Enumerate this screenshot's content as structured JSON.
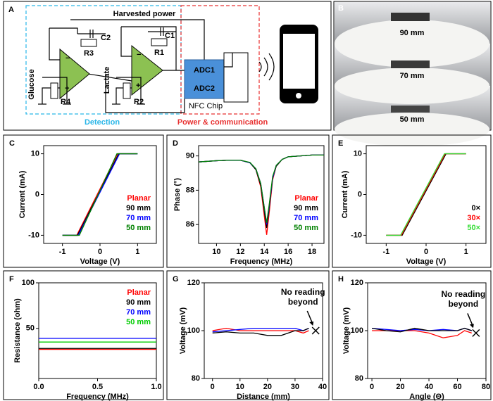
{
  "diagram": {
    "label": "A",
    "supply": "Harvested power",
    "components": [
      "C2",
      "R3",
      "C1",
      "R1",
      "R4",
      "R2"
    ],
    "opamp_signs": [
      "−",
      "+"
    ],
    "sensors": [
      "Glucose",
      "Lactate"
    ],
    "adc": [
      "ADC1",
      "ADC2"
    ],
    "chip": "NFC Chip",
    "sections": [
      "Detection",
      "Power & communication"
    ]
  },
  "photos": {
    "label": "B",
    "captions": [
      "90 mm",
      "70 mm",
      "50 mm"
    ]
  },
  "chart_data": [
    {
      "label": "C",
      "type": "line",
      "xlabel": "Voltage (V)",
      "ylabel": "Current (mA)",
      "xlim": [
        -1.5,
        1.5
      ],
      "xticks": [
        -1,
        0,
        1
      ],
      "ylim": [
        -12,
        12
      ],
      "yticks": [
        -10,
        0,
        10
      ],
      "legend": "right",
      "series": [
        {
          "name": "Planar",
          "color": "#ff0000",
          "x": [
            -1,
            -0.62,
            0.47,
            0.97
          ],
          "values": [
            -10,
            -10,
            10,
            10
          ]
        },
        {
          "name": "90 mm",
          "color": "#000000",
          "x": [
            -1,
            -0.6,
            0.5,
            1
          ],
          "values": [
            -10,
            -10,
            10,
            10
          ]
        },
        {
          "name": "70 mm",
          "color": "#0000ff",
          "x": [
            -1,
            -0.58,
            0.52,
            1
          ],
          "values": [
            -10,
            -10,
            10,
            10
          ]
        },
        {
          "name": "50 mm",
          "color": "#008000",
          "x": [
            -1,
            -0.55,
            0.45,
            1
          ],
          "values": [
            -10,
            -10,
            10,
            10
          ]
        }
      ]
    },
    {
      "label": "D",
      "type": "line",
      "xlabel": "Frequency (MHz)",
      "ylabel": "Phase (°)",
      "xlim": [
        8.5,
        19
      ],
      "xticks": [
        10,
        12,
        14,
        16,
        18
      ],
      "ylim": [
        84.9,
        90.6
      ],
      "yticks": [
        86,
        88,
        90
      ],
      "legend": "right",
      "x": [
        8.5,
        10,
        11,
        12,
        12.8,
        13.3,
        13.7,
        14,
        14.2,
        14.4,
        14.7,
        15,
        15.5,
        16,
        17,
        18,
        19
      ],
      "series": [
        {
          "name": "Planar",
          "color": "#ff0000",
          "values": [
            89.65,
            89.72,
            89.75,
            89.75,
            89.6,
            89.2,
            88.2,
            86.5,
            85.4,
            86.6,
            88.6,
            89.4,
            89.8,
            89.95,
            90,
            90.05,
            90.05
          ]
        },
        {
          "name": "90 mm",
          "color": "#000000",
          "values": [
            89.65,
            89.72,
            89.75,
            89.75,
            89.6,
            89.2,
            88.3,
            86.8,
            85.8,
            86.9,
            88.7,
            89.4,
            89.8,
            89.95,
            90,
            90.05,
            90.05
          ]
        },
        {
          "name": "70 mm",
          "color": "#0000ff",
          "values": [
            89.65,
            89.72,
            89.75,
            89.75,
            89.6,
            89.25,
            88.4,
            87,
            86,
            87,
            88.7,
            89.45,
            89.8,
            89.95,
            90,
            90.05,
            90.05
          ]
        },
        {
          "name": "50 mm",
          "color": "#008000",
          "values": [
            89.65,
            89.72,
            89.75,
            89.75,
            89.62,
            89.25,
            88.4,
            87,
            86.1,
            87.1,
            88.8,
            89.45,
            89.8,
            89.95,
            90,
            90.05,
            90.05
          ]
        }
      ]
    },
    {
      "label": "E",
      "type": "line",
      "xlabel": "Voltage (V)",
      "ylabel": "Current (mA)",
      "xlim": [
        -1.5,
        1.5
      ],
      "xticks": [
        -1,
        0,
        1
      ],
      "ylim": [
        -12,
        12
      ],
      "yticks": [
        -10,
        0,
        10
      ],
      "legend": "right",
      "series": [
        {
          "name": "0×",
          "color": "#000000",
          "x": [
            -1,
            -0.6,
            0.5,
            1
          ],
          "values": [
            -10,
            -10,
            10,
            10
          ]
        },
        {
          "name": "30×",
          "color": "#ff0000",
          "x": [
            -1,
            -0.62,
            0.48,
            1
          ],
          "values": [
            -10,
            -10,
            10,
            10
          ]
        },
        {
          "name": "50×",
          "color": "#33dd33",
          "x": [
            -1,
            -0.64,
            0.46,
            1
          ],
          "values": [
            -10,
            -10,
            10,
            10
          ]
        }
      ]
    },
    {
      "label": "F",
      "type": "line",
      "xlabel": "Frequency (MHz)",
      "ylabel": "Resistance (ohm)",
      "xlim": [
        0,
        1
      ],
      "xticks": [
        {
          "value": 0,
          "label": "0.0"
        },
        0.5,
        {
          "value": 1,
          "label": "1.0"
        }
      ],
      "ylim": [
        -5,
        100
      ],
      "yticks": [
        50,
        100
      ],
      "legend": "upper right",
      "x": [
        0,
        0.5,
        1
      ],
      "series": [
        {
          "name": "Planar",
          "color": "#ff0000",
          "values": [
            27,
            27,
            27
          ]
        },
        {
          "name": "90 mm",
          "color": "#000000",
          "values": [
            28,
            28,
            28
          ]
        },
        {
          "name": "70 mm",
          "color": "#0000ff",
          "values": [
            39,
            39,
            39
          ]
        },
        {
          "name": "50 mm",
          "color": "#00cc00",
          "values": [
            35,
            35,
            35
          ]
        }
      ]
    },
    {
      "label": "G",
      "type": "line",
      "xlabel": "Distance (mm)",
      "ylabel": "Voltage (mV)",
      "xlim": [
        -3,
        40
      ],
      "xticks": [
        0,
        10,
        20,
        30,
        40
      ],
      "ylim": [
        80,
        120
      ],
      "yticks": [
        80,
        100,
        120
      ],
      "x": [
        0,
        5,
        10,
        15,
        20,
        25,
        30,
        33,
        35
      ],
      "series": [
        {
          "color": "#ff0000",
          "values": [
            100,
            101,
            100,
            100,
            100,
            100,
            100,
            99,
            100
          ]
        },
        {
          "color": "#0000ff",
          "values": [
            99.5,
            100,
            100.5,
            101,
            101,
            101,
            101,
            100,
            101
          ]
        },
        {
          "color": "#000000",
          "values": [
            99,
            99.5,
            99,
            99,
            98,
            98,
            100,
            100,
            101
          ]
        }
      ],
      "annotation": {
        "text": "No reading beyond",
        "x": 37.5,
        "y": 100
      }
    },
    {
      "label": "H",
      "type": "line",
      "xlabel": "Angle (Θ)",
      "ylabel": "Voltage (mV)",
      "xlim": [
        -3,
        80
      ],
      "xticks": [
        0,
        20,
        40,
        60,
        80
      ],
      "ylim": [
        80,
        120
      ],
      "yticks": [
        80,
        100,
        120
      ],
      "x": [
        0,
        10,
        20,
        30,
        40,
        50,
        60,
        65,
        70
      ],
      "series": [
        {
          "color": "#ff0000",
          "values": [
            100,
            100,
            100,
            100,
            99,
            97,
            98,
            100,
            99
          ]
        },
        {
          "color": "#0000ff",
          "values": [
            101,
            100.5,
            100,
            100.5,
            100,
            100.5,
            100,
            101,
            100
          ]
        },
        {
          "color": "#000000",
          "values": [
            101,
            100,
            99.5,
            101,
            100,
            100,
            100,
            101,
            100
          ]
        }
      ],
      "annotation": {
        "text": "No reading beyond",
        "x": 73,
        "y": 99
      }
    }
  ]
}
